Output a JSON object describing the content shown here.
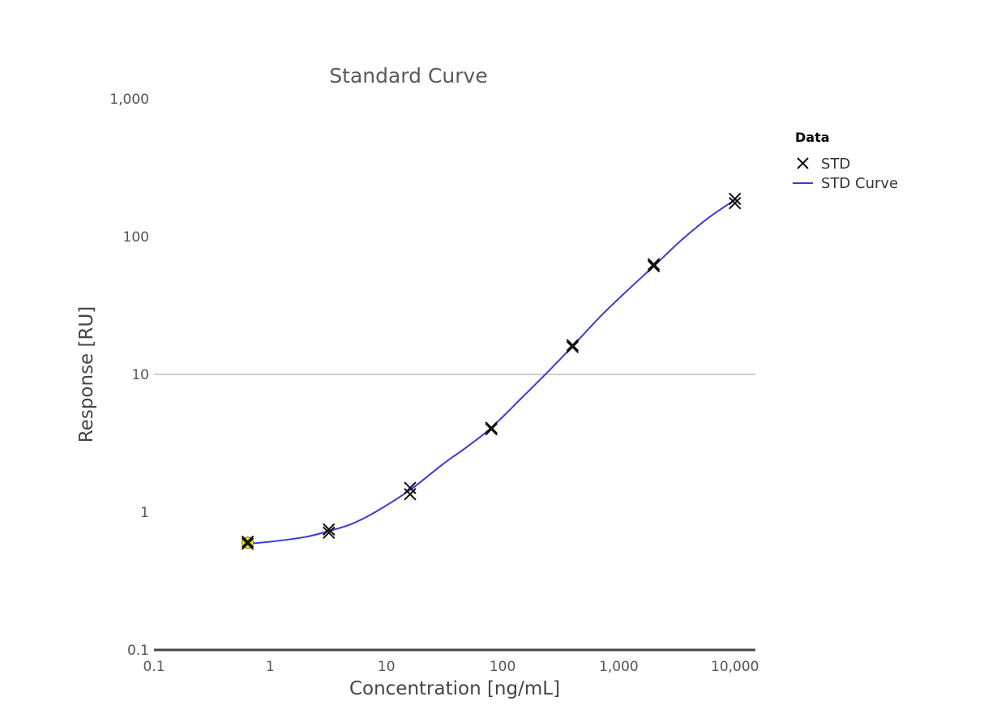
{
  "chart_data": {
    "type": "scatter",
    "title": "Standard Curve",
    "xlabel": "Concentration [ng/mL]",
    "ylabel": "Response [RU]",
    "x_scale": "log",
    "y_scale": "log",
    "xlim": [
      0.1,
      15000
    ],
    "ylim": [
      0.1,
      1000
    ],
    "x_ticks": [
      0.1,
      1,
      10,
      100,
      1000,
      10000
    ],
    "x_tick_labels": [
      "0.1",
      "1",
      "10",
      "100",
      "1,000",
      "10,000"
    ],
    "y_ticks": [
      0.1,
      1,
      10,
      100,
      1000
    ],
    "y_tick_labels": [
      "0.1",
      "1",
      "10",
      "100",
      "1,000"
    ],
    "gridlines_y": [
      10
    ],
    "legend": {
      "title": "Data",
      "position": "right",
      "entries": [
        "STD",
        "STD Curve"
      ]
    },
    "series": [
      {
        "name": "STD",
        "marker": "x",
        "color": "#111111",
        "x": [
          0.64,
          0.64,
          3.2,
          3.2,
          16,
          16,
          80,
          80,
          400,
          400,
          2000,
          2000,
          10000,
          10000
        ],
        "y": [
          0.59,
          0.61,
          0.71,
          0.75,
          1.35,
          1.5,
          4.0,
          4.1,
          15.8,
          16.3,
          61,
          63,
          175,
          188
        ]
      },
      {
        "name": "STD Curve",
        "type": "line",
        "color": "#3b3bd4",
        "x": [
          0.64,
          1,
          2,
          3.2,
          5,
          8,
          16,
          30,
          50,
          80,
          150,
          250,
          400,
          700,
          1200,
          2000,
          3500,
          6000,
          10000
        ],
        "y": [
          0.59,
          0.61,
          0.66,
          0.73,
          0.82,
          1.0,
          1.45,
          2.2,
          3.0,
          4.1,
          6.9,
          10.6,
          16.0,
          26.5,
          41,
          61,
          95,
          138,
          185
        ]
      }
    ],
    "highlighted_point": {
      "x": 0.64,
      "y": 0.6,
      "color": "#f2e600"
    }
  }
}
